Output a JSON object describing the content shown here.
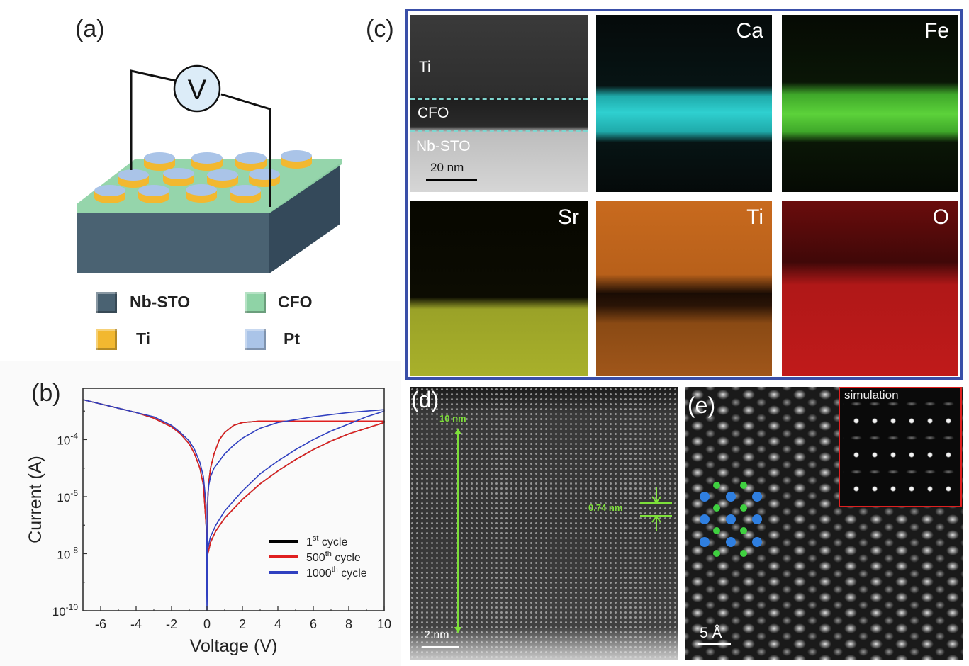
{
  "panels": {
    "a": {
      "label": "(a)",
      "voltmeter_symbol": "V",
      "legend": [
        {
          "name": "Nb-STO",
          "color": "#4a6272"
        },
        {
          "name": "CFO",
          "color": "#8fd3a6"
        },
        {
          "name": "Ti",
          "color": "#f2b830"
        },
        {
          "name": "Pt",
          "color": "#aac4e8"
        }
      ],
      "colors": {
        "substrate_front": "#4a6272",
        "substrate_side": "#34495a",
        "film": "#8fd3a6",
        "ti": "#f2b830",
        "pt": "#aac4e8",
        "voltmeter_fill": "#dcecf8"
      }
    },
    "b": {
      "label": "(b)"
    },
    "c": {
      "label": "(c)",
      "frame_color": "#3a4fa8",
      "haadf": {
        "layers": [
          "Ti",
          "CFO",
          "Nb-STO"
        ],
        "scale_bar": "20 nm"
      },
      "maps": [
        {
          "element": "Ca",
          "color": "#2fd0d0"
        },
        {
          "element": "Fe",
          "color": "#5cd23a"
        },
        {
          "element": "Sr",
          "color": "#c8d230"
        },
        {
          "element": "Ti",
          "color": "#e07a20"
        },
        {
          "element": "O",
          "color": "#e02020"
        }
      ]
    },
    "d": {
      "label": "(d)",
      "thickness": "10 nm",
      "spacing": "0.74 nm",
      "scale_bar": "2 nm",
      "annotation_color": "#7ee03a"
    },
    "e": {
      "label": "(e)",
      "inset_label": "simulation",
      "scale_bar": "5 Å",
      "inset_border": "#e02020",
      "atom_colors": {
        "blue": "#2f7fe0",
        "green": "#3fd040"
      }
    }
  },
  "chart_data": {
    "type": "line",
    "title": "",
    "xlabel": "Voltage (V)",
    "ylabel": "Current (A)",
    "yscale": "log",
    "xlim": [
      -7,
      10
    ],
    "ylim_log10": [
      -10,
      -2.2
    ],
    "xticks": [
      -6,
      -4,
      -2,
      0,
      2,
      4,
      6,
      8,
      10
    ],
    "xtick_labels": [
      "-6",
      "-4",
      "-2",
      "0",
      "2",
      "4",
      "6",
      "8",
      "10"
    ],
    "yticks_log10": [
      -10,
      -8,
      -6,
      -4
    ],
    "ytick_labels": [
      {
        "base": "10",
        "exp": "-10"
      },
      {
        "base": "10",
        "exp": "-8"
      },
      {
        "base": "10",
        "exp": "-6"
      },
      {
        "base": "10",
        "exp": "-4"
      }
    ],
    "legend_position": "bottom-right",
    "legend": [
      {
        "base": "1",
        "sup": "st",
        "rest": " cycle",
        "color": "#000000"
      },
      {
        "base": "500",
        "sup": "th",
        "rest": " cycle",
        "color": "#e02020"
      },
      {
        "base": "1000",
        "sup": "th",
        "rest": " cycle",
        "color": "#3040c0"
      }
    ],
    "series": [
      {
        "name": "1st cycle",
        "color": "#000000",
        "x": [
          -7,
          -6,
          -5,
          -4,
          -3,
          -2,
          -1.5,
          -1,
          -0.7,
          -0.4,
          -0.2,
          -0.05,
          0,
          0.05,
          0.1,
          0.2,
          0.4,
          0.7,
          1,
          1.5,
          2,
          3,
          4,
          6,
          8,
          10,
          10,
          9,
          8,
          7,
          6,
          5,
          4,
          3,
          2,
          1,
          0.5,
          0.2,
          0.05,
          0
        ],
        "log10_y": [
          -2.6,
          -2.75,
          -2.9,
          -3.05,
          -3.25,
          -3.55,
          -3.8,
          -4.15,
          -4.5,
          -5.0,
          -5.6,
          -7.0,
          -8.4,
          -6.0,
          -5.5,
          -5.0,
          -4.5,
          -4.0,
          -3.75,
          -3.5,
          -3.4,
          -3.35,
          -3.35,
          -3.35,
          -3.35,
          -3.35,
          -3.4,
          -3.6,
          -3.8,
          -4.05,
          -4.35,
          -4.7,
          -5.1,
          -5.55,
          -6.1,
          -6.75,
          -7.2,
          -7.6,
          -8.0,
          -8.5
        ]
      },
      {
        "name": "500th cycle",
        "color": "#e02020",
        "x": [
          -7,
          -6,
          -5,
          -4,
          -3,
          -2,
          -1.5,
          -1,
          -0.7,
          -0.4,
          -0.2,
          -0.05,
          0,
          0.05,
          0.1,
          0.2,
          0.4,
          0.7,
          1,
          1.5,
          2,
          3,
          4,
          6,
          8,
          10,
          10,
          9,
          8,
          7,
          6,
          5,
          4,
          3,
          2,
          1,
          0.5,
          0.2,
          0.05,
          0
        ],
        "log10_y": [
          -2.6,
          -2.75,
          -2.9,
          -3.05,
          -3.25,
          -3.55,
          -3.8,
          -4.15,
          -4.5,
          -5.0,
          -5.6,
          -7.0,
          -8.6,
          -6.0,
          -5.5,
          -5.0,
          -4.5,
          -4.0,
          -3.75,
          -3.5,
          -3.4,
          -3.35,
          -3.35,
          -3.35,
          -3.35,
          -3.35,
          -3.4,
          -3.6,
          -3.8,
          -4.05,
          -4.35,
          -4.7,
          -5.1,
          -5.55,
          -6.1,
          -6.75,
          -7.2,
          -7.6,
          -8.0,
          -8.6
        ]
      },
      {
        "name": "1000th cycle",
        "color": "#3040c0",
        "x": [
          -7,
          -6,
          -5,
          -4,
          -3,
          -2,
          -1.5,
          -1,
          -0.7,
          -0.4,
          -0.2,
          -0.05,
          0,
          0.05,
          0.1,
          0.2,
          0.4,
          0.7,
          1,
          1.5,
          2,
          3,
          4,
          6,
          8,
          10,
          10,
          9,
          8,
          7,
          6,
          5,
          4,
          3,
          2,
          1,
          0.5,
          0.2,
          0.05,
          0
        ],
        "log10_y": [
          -2.6,
          -2.75,
          -2.9,
          -3.05,
          -3.2,
          -3.5,
          -3.75,
          -4.05,
          -4.35,
          -4.8,
          -5.3,
          -6.3,
          -10,
          -6.0,
          -5.6,
          -5.3,
          -5.0,
          -4.75,
          -4.5,
          -4.2,
          -3.95,
          -3.6,
          -3.4,
          -3.2,
          -3.05,
          -2.95,
          -3.0,
          -3.2,
          -3.45,
          -3.7,
          -4.0,
          -4.35,
          -4.75,
          -5.2,
          -5.8,
          -6.5,
          -7.0,
          -7.4,
          -7.8,
          -10
        ]
      }
    ]
  }
}
